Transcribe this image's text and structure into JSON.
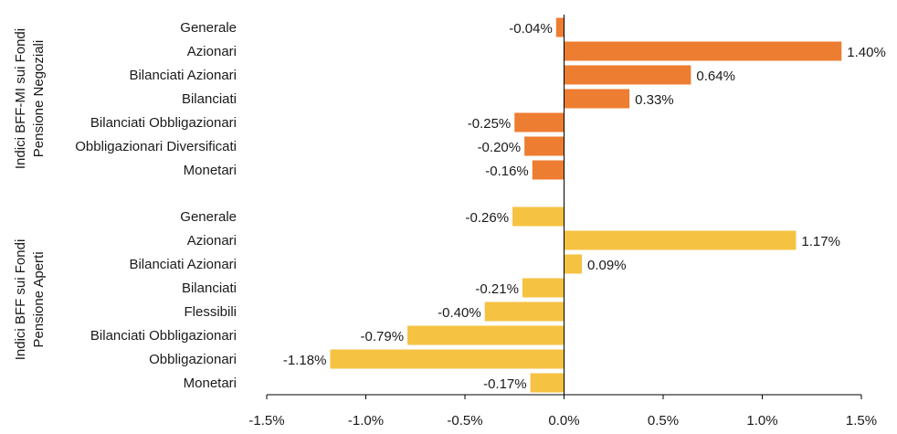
{
  "chart_data": {
    "type": "bar",
    "orientation": "horizontal",
    "xlim": [
      -1.5,
      1.5
    ],
    "x_ticks": [
      {
        "value": -1.5,
        "label": "-1.5%"
      },
      {
        "value": -1.0,
        "label": "-1.0%"
      },
      {
        "value": -0.5,
        "label": "-0.5%"
      },
      {
        "value": 0.0,
        "label": "0.0%"
      },
      {
        "value": 0.5,
        "label": "0.5%"
      },
      {
        "value": 1.0,
        "label": "1.0%"
      },
      {
        "value": 1.5,
        "label": "1.5%"
      }
    ],
    "grid": false,
    "groups": [
      {
        "label_lines": [
          "Indici BFF-MI sui Fondi",
          "Pensione Negoziali"
        ],
        "color": "#ED7D31",
        "categories": [
          "Generale",
          "Azionari",
          "Bilanciati Azionari",
          "Bilanciati",
          "Bilanciati Obbligazionari",
          "Obbligazionari Diversificati",
          "Monetari"
        ],
        "values": [
          -0.04,
          1.4,
          0.64,
          0.33,
          -0.25,
          -0.2,
          -0.16
        ],
        "value_labels": [
          "-0.04%",
          "1.40%",
          "0.64%",
          "0.33%",
          "-0.25%",
          "-0.20%",
          "-0.16%"
        ]
      },
      {
        "label_lines": [
          "Indici BFF sui Fondi",
          "Pensione Aperti"
        ],
        "color": "#F5C242",
        "categories": [
          "Generale",
          "Azionari",
          "Bilanciati Azionari",
          "Bilanciati",
          "Flessibili",
          "Bilanciati Obbligazionari",
          "Obbligazionari",
          "Monetari"
        ],
        "values": [
          -0.26,
          1.17,
          0.09,
          -0.21,
          -0.4,
          -0.79,
          -1.18,
          -0.17
        ],
        "value_labels": [
          "-0.26%",
          "1.17%",
          "0.09%",
          "-0.21%",
          "-0.40%",
          "-0.79%",
          "-1.18%",
          "-0.17%"
        ]
      }
    ]
  }
}
